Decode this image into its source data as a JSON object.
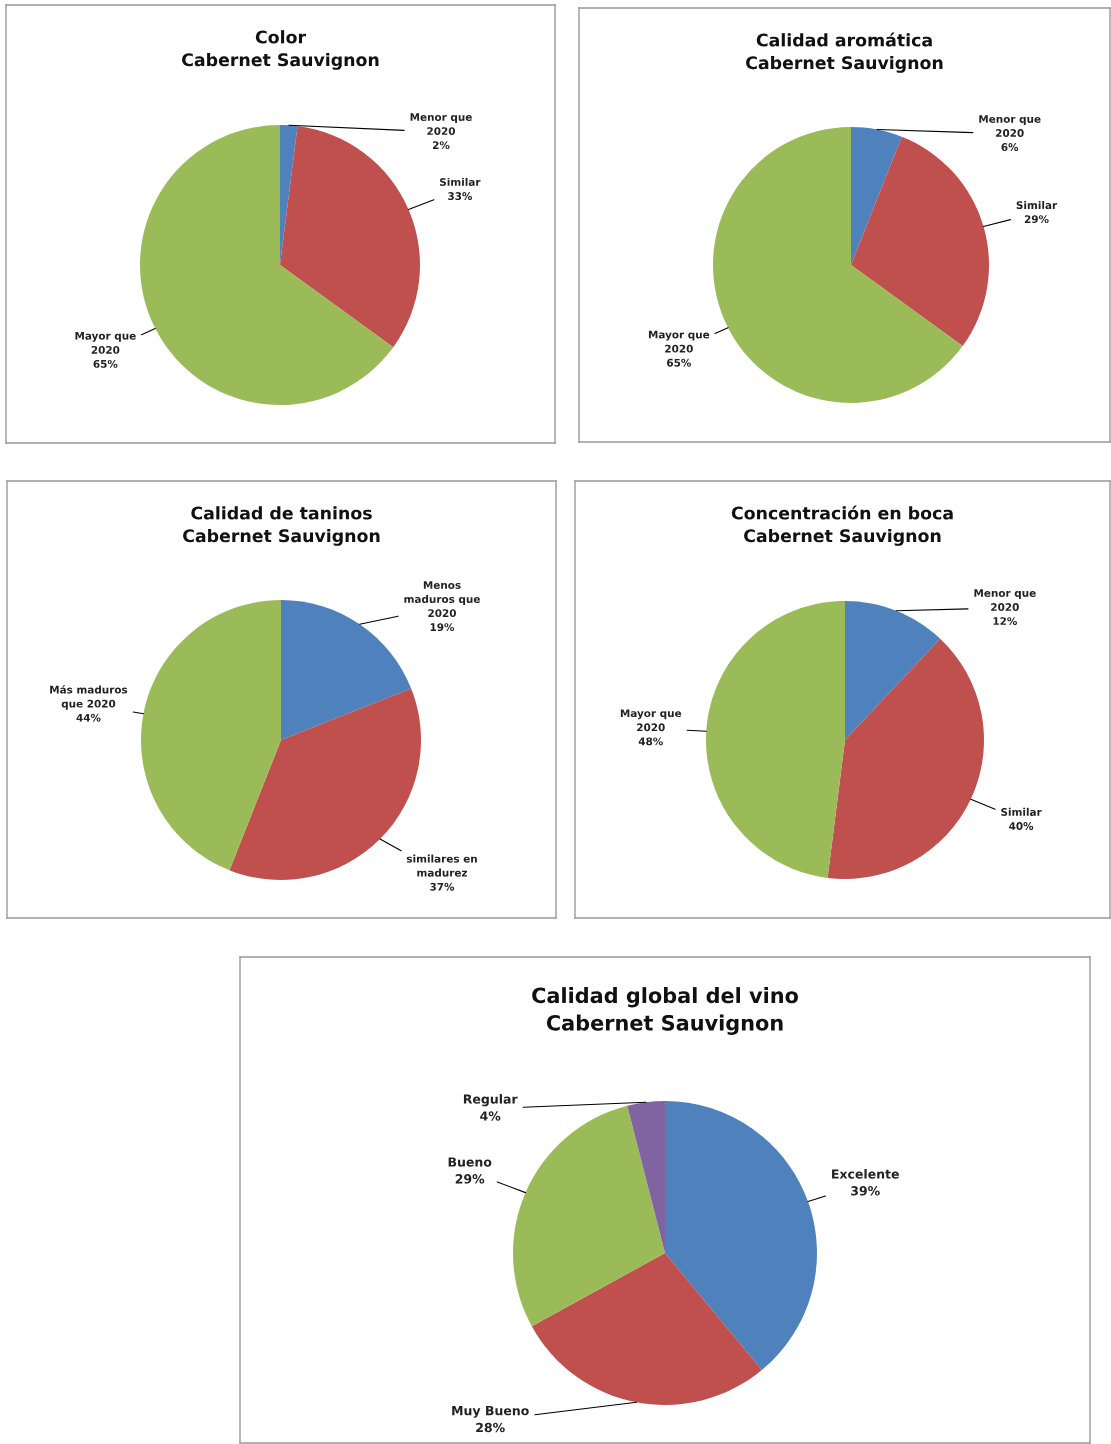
{
  "chart_data": [
    {
      "type": "pie",
      "title": "Color\nCabernet Sauvignon",
      "categories": [
        "Menor que\n2020",
        "Similar",
        "Mayor que\n2020"
      ],
      "values": [
        2,
        33,
        65
      ],
      "value_labels": [
        "2%",
        "33%",
        "65%"
      ],
      "colors": [
        "#4f81bd",
        "#c0504d",
        "#9bbb59"
      ]
    },
    {
      "type": "pie",
      "title": "Calidad aromática\nCabernet Sauvignon",
      "categories": [
        "Menor que\n2020",
        "Similar",
        "Mayor que\n2020"
      ],
      "values": [
        6,
        29,
        65
      ],
      "value_labels": [
        "6%",
        "29%",
        "65%"
      ],
      "colors": [
        "#4f81bd",
        "#c0504d",
        "#9bbb59"
      ]
    },
    {
      "type": "pie",
      "title": "Calidad de taninos\nCabernet Sauvignon",
      "categories": [
        "Menos\nmaduros que\n2020",
        "similares en\nmadurez",
        "Más maduros\nque 2020"
      ],
      "values": [
        19,
        37,
        44
      ],
      "value_labels": [
        "19%",
        "37%",
        "44%"
      ],
      "colors": [
        "#4f81bd",
        "#c0504d",
        "#9bbb59"
      ]
    },
    {
      "type": "pie",
      "title": "Concentración en boca\nCabernet Sauvignon",
      "categories": [
        "Menor que\n2020",
        "Similar",
        "Mayor que\n2020"
      ],
      "values": [
        12,
        40,
        48
      ],
      "value_labels": [
        "12%",
        "40%",
        "48%"
      ],
      "colors": [
        "#4f81bd",
        "#c0504d",
        "#9bbb59"
      ]
    },
    {
      "type": "pie",
      "title": "Calidad global del vino\nCabernet Sauvignon",
      "categories": [
        "Excelente",
        "Muy Bueno",
        "Bueno",
        "Regular"
      ],
      "values": [
        39,
        28,
        29,
        4
      ],
      "value_labels": [
        "39%",
        "28%",
        "29%",
        "4%"
      ],
      "colors": [
        "#4f81bd",
        "#c0504d",
        "#9bbb59",
        "#8064a2"
      ]
    }
  ]
}
